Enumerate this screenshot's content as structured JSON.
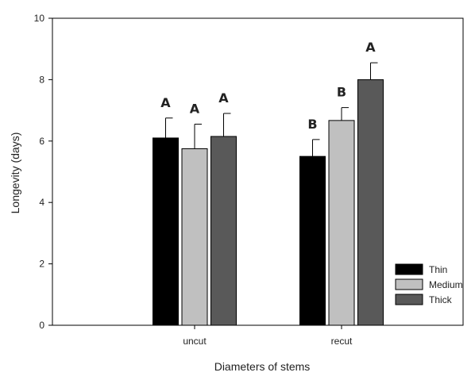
{
  "chart_data": {
    "type": "bar",
    "title": "",
    "xlabel": "Diameters of stems",
    "ylabel": "Longevity (days)",
    "ylim": [
      0,
      10
    ],
    "yticks": [
      0,
      2,
      4,
      6,
      8,
      10
    ],
    "categories": [
      "uncut",
      "recut"
    ],
    "series": [
      {
        "name": "Thin",
        "color": "#000000",
        "values": [
          6.1,
          5.5
        ],
        "errors": [
          0.65,
          0.55
        ],
        "labels": [
          "A",
          "B"
        ]
      },
      {
        "name": "Medium",
        "color": "#c0c0c0",
        "values": [
          5.75,
          6.67
        ],
        "errors": [
          0.8,
          0.42
        ],
        "labels": [
          "A",
          "B"
        ]
      },
      {
        "name": "Thick",
        "color": "#595959",
        "values": [
          6.15,
          8.0
        ],
        "errors": [
          0.75,
          0.55
        ],
        "labels": [
          "A",
          "A"
        ]
      }
    ],
    "legend_position": "bottom-right",
    "grid": false
  }
}
